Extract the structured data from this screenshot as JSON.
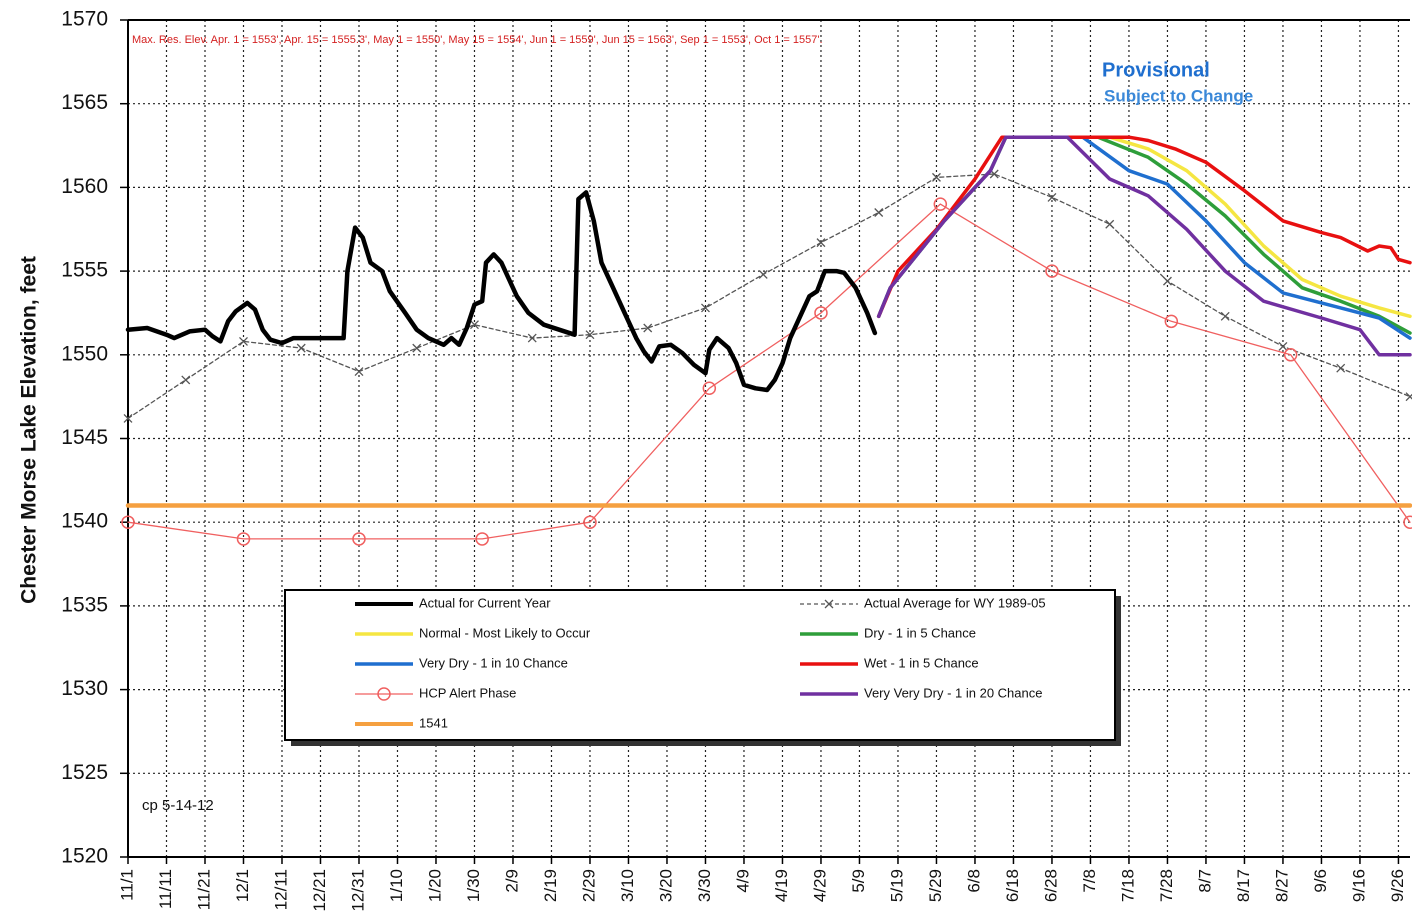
{
  "chart_data": {
    "type": "line",
    "y_label": "Chester Morse Lake Elevation, feet",
    "note": "Max. Res. Elev.    Apr. 1 = 1553', Apr. 15 = 1555.3', May 1 = 1550', May 15 = 1554', Jun 1 = 1559', Jun 15 = 1563', Sep 1 = 1553', Oct 1 = 1557'.",
    "watermark": [
      "Provisional",
      "Subject to Change"
    ],
    "footnote": "cp 5-14-12",
    "grid": true,
    "xlim": [
      0,
      333
    ],
    "ylim": [
      1520,
      1570
    ],
    "yticks": [
      1520,
      1525,
      1530,
      1535,
      1540,
      1545,
      1550,
      1555,
      1560,
      1565,
      1570
    ],
    "xticks": [
      {
        "value": 0,
        "label": "11/1"
      },
      {
        "value": 10,
        "label": "11/11"
      },
      {
        "value": 20,
        "label": "11/21"
      },
      {
        "value": 30,
        "label": "12/1"
      },
      {
        "value": 40,
        "label": "12/11"
      },
      {
        "value": 50,
        "label": "12/21"
      },
      {
        "value": 60,
        "label": "12/31"
      },
      {
        "value": 70,
        "label": "1/10"
      },
      {
        "value": 80,
        "label": "1/20"
      },
      {
        "value": 90,
        "label": "1/30"
      },
      {
        "value": 100,
        "label": "2/9"
      },
      {
        "value": 110,
        "label": "2/19"
      },
      {
        "value": 120,
        "label": "2/29"
      },
      {
        "value": 130,
        "label": "3/10"
      },
      {
        "value": 140,
        "label": "3/20"
      },
      {
        "value": 150,
        "label": "3/30"
      },
      {
        "value": 160,
        "label": "4/9"
      },
      {
        "value": 170,
        "label": "4/19"
      },
      {
        "value": 180,
        "label": "4/29"
      },
      {
        "value": 190,
        "label": "5/9"
      },
      {
        "value": 200,
        "label": "5/19"
      },
      {
        "value": 210,
        "label": "5/29"
      },
      {
        "value": 220,
        "label": "6/8"
      },
      {
        "value": 230,
        "label": "6/18"
      },
      {
        "value": 240,
        "label": "6/28"
      },
      {
        "value": 250,
        "label": "7/8"
      },
      {
        "value": 260,
        "label": "7/18"
      },
      {
        "value": 270,
        "label": "7/28"
      },
      {
        "value": 280,
        "label": "8/7"
      },
      {
        "value": 290,
        "label": "8/17"
      },
      {
        "value": 300,
        "label": "8/27"
      },
      {
        "value": 310,
        "label": "9/6"
      },
      {
        "value": 320,
        "label": "9/16"
      },
      {
        "value": 330,
        "label": "9/26"
      }
    ],
    "series": [
      {
        "name": "Actual for Current Year",
        "color": "#000000",
        "line": "thick",
        "marker": "none",
        "x": [
          0,
          5,
          10,
          12,
          16,
          20,
          22,
          24,
          26,
          28,
          31,
          33,
          35,
          37,
          40,
          43,
          50,
          56,
          57,
          59,
          61,
          63,
          66,
          68,
          72,
          75,
          78,
          82,
          84,
          86,
          88,
          90,
          92,
          93,
          95,
          97,
          99,
          101,
          104,
          108,
          112,
          116,
          117,
          119,
          121,
          123,
          126,
          129,
          132,
          134,
          136,
          138,
          141,
          144,
          147,
          150,
          151,
          153,
          156,
          158,
          160,
          163,
          166,
          168,
          170,
          172,
          175,
          177,
          179,
          181,
          184,
          186,
          189,
          192,
          194
        ],
        "values": [
          1551.5,
          1551.6,
          1551.2,
          1551.0,
          1551.4,
          1551.5,
          1551.1,
          1550.8,
          1552.0,
          1552.6,
          1553.1,
          1552.7,
          1551.5,
          1550.9,
          1550.7,
          1551.0,
          1551.0,
          1551.0,
          1555.0,
          1557.6,
          1557.0,
          1555.5,
          1555.0,
          1553.8,
          1552.5,
          1551.5,
          1551.0,
          1550.6,
          1551.0,
          1550.6,
          1551.6,
          1553.0,
          1553.2,
          1555.5,
          1556.0,
          1555.5,
          1554.5,
          1553.5,
          1552.5,
          1551.8,
          1551.5,
          1551.2,
          1559.3,
          1559.7,
          1558.0,
          1555.5,
          1554.0,
          1552.5,
          1551.0,
          1550.2,
          1549.6,
          1550.5,
          1550.6,
          1550.1,
          1549.4,
          1548.9,
          1550.3,
          1551.0,
          1550.4,
          1549.5,
          1548.2,
          1548.0,
          1547.9,
          1548.5,
          1549.5,
          1551.0,
          1552.5,
          1553.5,
          1553.8,
          1555.0,
          1555.0,
          1554.9,
          1554.0,
          1552.5,
          1551.3
        ]
      },
      {
        "name": "Actual Average for WY 1989-05",
        "color": "#555555",
        "line": "dashed",
        "marker": "x",
        "x": [
          0,
          15,
          30,
          45,
          60,
          75,
          90,
          105,
          120,
          135,
          150,
          165,
          180,
          195,
          210,
          225,
          240,
          255,
          270,
          285,
          300,
          315,
          333
        ],
        "values": [
          1546.2,
          1548.5,
          1550.8,
          1550.4,
          1549.0,
          1550.4,
          1551.8,
          1551.0,
          1551.2,
          1551.6,
          1552.8,
          1554.8,
          1556.7,
          1558.5,
          1560.6,
          1560.8,
          1559.4,
          1557.8,
          1554.4,
          1552.3,
          1550.5,
          1549.2,
          1547.5
        ]
      },
      {
        "name": "Normal - Most Likely to Occur",
        "color": "#f5e642",
        "line": "medium",
        "marker": "none",
        "x": [
          195,
          198,
          205,
          212,
          218,
          224,
          228,
          255,
          265,
          275,
          285,
          295,
          305,
          315,
          325,
          333
        ],
        "values": [
          1552.3,
          1554.0,
          1556.0,
          1558.0,
          1559.5,
          1561.0,
          1563.0,
          1563.0,
          1562.3,
          1561.0,
          1559.0,
          1556.5,
          1554.5,
          1553.5,
          1552.8,
          1552.3
        ]
      },
      {
        "name": "Dry - 1 in 5 Chance",
        "color": "#2e9e3a",
        "line": "medium",
        "marker": "none",
        "x": [
          195,
          198,
          205,
          212,
          218,
          224,
          228,
          252,
          265,
          275,
          285,
          295,
          305,
          315,
          325,
          333
        ],
        "values": [
          1552.3,
          1554.0,
          1556.0,
          1558.0,
          1559.5,
          1561.0,
          1563.0,
          1563.0,
          1561.8,
          1560.2,
          1558.3,
          1556.0,
          1554.0,
          1553.2,
          1552.3,
          1551.3
        ]
      },
      {
        "name": "Very Dry - 1 in 10 Chance",
        "color": "#1f6fcf",
        "line": "medium",
        "marker": "none",
        "x": [
          195,
          198,
          205,
          212,
          218,
          224,
          228,
          248,
          260,
          270,
          280,
          290,
          300,
          315,
          325,
          333
        ],
        "values": [
          1552.3,
          1554.0,
          1556.0,
          1558.0,
          1559.5,
          1561.0,
          1563.0,
          1563.0,
          1561.0,
          1560.2,
          1558.0,
          1555.5,
          1553.7,
          1552.8,
          1552.2,
          1551.0
        ]
      },
      {
        "name": "Wet - 1 in 5 Chance",
        "color": "#e81010",
        "line": "medium",
        "marker": "none",
        "x": [
          195,
          200,
          210,
          220,
          227,
          260,
          265,
          272,
          280,
          290,
          300,
          310,
          315,
          322,
          325,
          328,
          330,
          333
        ],
        "values": [
          1552.3,
          1555.0,
          1557.5,
          1560.5,
          1563.0,
          1563.0,
          1562.8,
          1562.3,
          1561.5,
          1559.8,
          1558.0,
          1557.3,
          1557.0,
          1556.2,
          1556.5,
          1556.4,
          1555.7,
          1555.5
        ]
      },
      {
        "name": "HCP Alert Phase",
        "color": "#f06060",
        "line": "thin",
        "marker": "circle",
        "x": [
          0,
          30,
          60,
          92,
          120,
          151,
          180,
          211,
          240,
          271,
          302,
          333
        ],
        "values": [
          1540,
          1539,
          1539,
          1539,
          1540,
          1548,
          1552.5,
          1559,
          1555,
          1552,
          1550,
          1540
        ]
      },
      {
        "name": "Very Very Dry - 1 in 20 Chance",
        "color": "#7030a0",
        "line": "medium",
        "marker": "none",
        "x": [
          195,
          198,
          205,
          212,
          218,
          224,
          228,
          244,
          255,
          265,
          275,
          285,
          295,
          310,
          320,
          325,
          333
        ],
        "values": [
          1552.3,
          1554.0,
          1556.0,
          1558.0,
          1559.5,
          1561.0,
          1563.0,
          1563.0,
          1560.5,
          1559.5,
          1557.5,
          1555.0,
          1553.2,
          1552.2,
          1551.5,
          1550.0,
          1550.0
        ]
      },
      {
        "name": "1541",
        "color": "#f5a040",
        "line": "thick",
        "marker": "none",
        "x": [
          0,
          333
        ],
        "values": [
          1541,
          1541
        ]
      }
    ]
  }
}
